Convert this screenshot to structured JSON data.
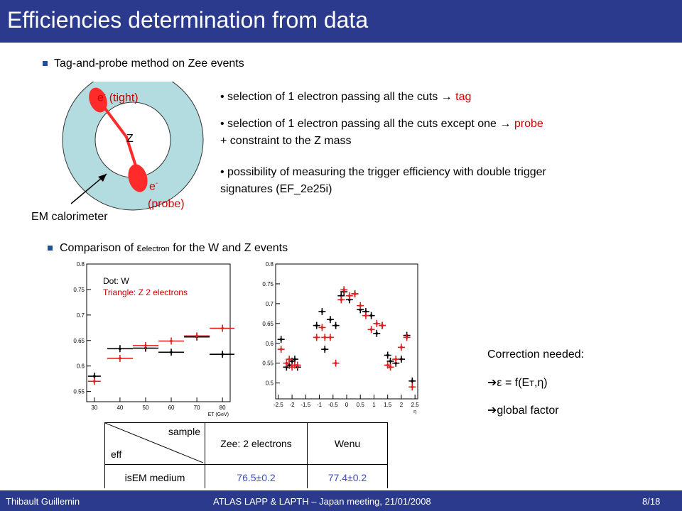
{
  "slide": {
    "title": "Efficiencies determination from data",
    "page": "8/18",
    "author": "Thibault Guillemin",
    "event": "ATLAS LAPP & LAPTH – Japan meeting, 21/01/2008"
  },
  "section1": {
    "heading": "Tag-and-probe method on Zee events"
  },
  "diagram": {
    "z_label": "Z",
    "tight_label": "e",
    "tight_sup": "-",
    "tight_suffix": " (tight)",
    "probe_label": "e",
    "probe_sup": "-",
    "probe_suffix": "(probe)",
    "calo_label": "EM calorimeter",
    "colors": {
      "ring": "#b2dcdf",
      "electron": "#ff2a2a",
      "track": "#ff2a2a"
    }
  },
  "bullets": {
    "b1_text": "selection of 1 electron passing all the cuts",
    "b1_red": "tag",
    "b2_text": "selection of 1 electron passing all the cuts except one",
    "b2_red": "probe",
    "b2_line2": "+ constraint to the Z mass",
    "b3_line1": "possibility of measuring the trigger efficiency with double trigger",
    "b3_line2": "signatures (EF_2e25i)",
    "arrow": "→"
  },
  "section2": {
    "heading_pre": "Comparison of ",
    "epsilon": "ε",
    "epsilon_sub": "electron",
    "heading_post": " for the W and Z events"
  },
  "correction": {
    "title": "Correction needed:",
    "line1_pre": "ε = f(E",
    "line1_sub": "T",
    "line1_post": ",η)",
    "line2": "global factor",
    "arrow": "➔"
  },
  "table": {
    "corner_top": "sample",
    "corner_bottom": "eff",
    "col1": "Zee: 2 electrons",
    "col2": "Wenu",
    "row_label": "isEM medium",
    "val1": "76.5±0.2",
    "val2": "77.4±0.2"
  },
  "chart_data": [
    {
      "type": "scatter",
      "legend": [
        "Dot: W",
        "Triangle: Z 2 electrons"
      ],
      "xlabel": "E",
      "xlabel_sub": "T",
      "xlabel_unit": " (GeV)",
      "xlim": [
        27,
        83
      ],
      "ylim": [
        0.53,
        0.8
      ],
      "xticks": [
        "30",
        "40",
        "50",
        "60",
        "70",
        "80"
      ],
      "xtick_values": [
        30,
        40,
        50,
        60,
        70,
        80
      ],
      "yticks": [
        "0.55",
        "0.6",
        "0.65",
        "0.7",
        "0.75",
        "0.8"
      ],
      "ytick_values": [
        0.55,
        0.6,
        0.65,
        0.7,
        0.75,
        0.8
      ],
      "series": [
        {
          "name": "Dot: W",
          "color": "#000000",
          "x": [
            30,
            40,
            50,
            60,
            70,
            80
          ],
          "xerr": [
            2.5,
            5,
            5,
            5,
            5,
            5
          ],
          "y": [
            0.58,
            0.634,
            0.635,
            0.627,
            0.657,
            0.623
          ]
        },
        {
          "name": "Triangle: Z 2 electrons",
          "color": "#e02020",
          "x": [
            30,
            40,
            50,
            60,
            70,
            80
          ],
          "xerr": [
            2.5,
            5,
            5,
            5,
            5,
            5
          ],
          "y": [
            0.57,
            0.615,
            0.64,
            0.649,
            0.659,
            0.674
          ]
        }
      ]
    },
    {
      "type": "scatter",
      "xlabel": "η",
      "xlim": [
        -2.6,
        2.6
      ],
      "ylim": [
        0.46,
        0.8
      ],
      "xticks": [
        "-2.5",
        "-2",
        "-1.5",
        "-1",
        "-0.5",
        "0",
        "0.5",
        "1",
        "1.5",
        "2",
        "2.5"
      ],
      "xtick_values": [
        -2.5,
        -2,
        -1.5,
        -1,
        -0.5,
        0,
        0.5,
        1,
        1.5,
        2,
        2.5
      ],
      "yticks": [
        "0.5",
        "0.55",
        "0.6",
        "0.65",
        "0.7",
        "0.75",
        "0.8"
      ],
      "ytick_values": [
        0.5,
        0.55,
        0.6,
        0.65,
        0.7,
        0.75,
        0.8
      ],
      "series": [
        {
          "name": "",
          "color": "#000000",
          "x": [
            -2.4,
            -2.2,
            -2.1,
            -2.0,
            -1.9,
            -1.8,
            -1.1,
            -0.9,
            -0.8,
            -0.6,
            -0.4,
            -0.2,
            -0.1,
            0.1,
            0.3,
            0.5,
            0.7,
            0.9,
            1.1,
            1.3,
            1.5,
            1.6,
            1.8,
            2.0,
            2.2,
            2.4
          ],
          "y": [
            0.61,
            0.54,
            0.545,
            0.555,
            0.56,
            0.54,
            0.645,
            0.68,
            0.585,
            0.66,
            0.645,
            0.72,
            0.73,
            0.71,
            0.725,
            0.685,
            0.68,
            0.67,
            0.625,
            0.645,
            0.57,
            0.555,
            0.55,
            0.56,
            0.62,
            0.505
          ]
        },
        {
          "name": "",
          "color": "#e02020",
          "x": [
            -2.4,
            -2.2,
            -2.1,
            -2.0,
            -1.9,
            -1.8,
            -1.1,
            -0.9,
            -0.8,
            -0.6,
            -0.4,
            -0.2,
            -0.1,
            0.1,
            0.3,
            0.5,
            0.7,
            0.9,
            1.1,
            1.3,
            1.5,
            1.6,
            1.8,
            2.0,
            2.2,
            2.4
          ],
          "y": [
            0.585,
            0.55,
            0.56,
            0.54,
            0.545,
            0.545,
            0.615,
            0.64,
            0.615,
            0.615,
            0.55,
            0.71,
            0.735,
            0.72,
            0.725,
            0.695,
            0.67,
            0.635,
            0.65,
            0.645,
            0.545,
            0.54,
            0.56,
            0.59,
            0.615,
            0.49
          ]
        }
      ]
    }
  ]
}
